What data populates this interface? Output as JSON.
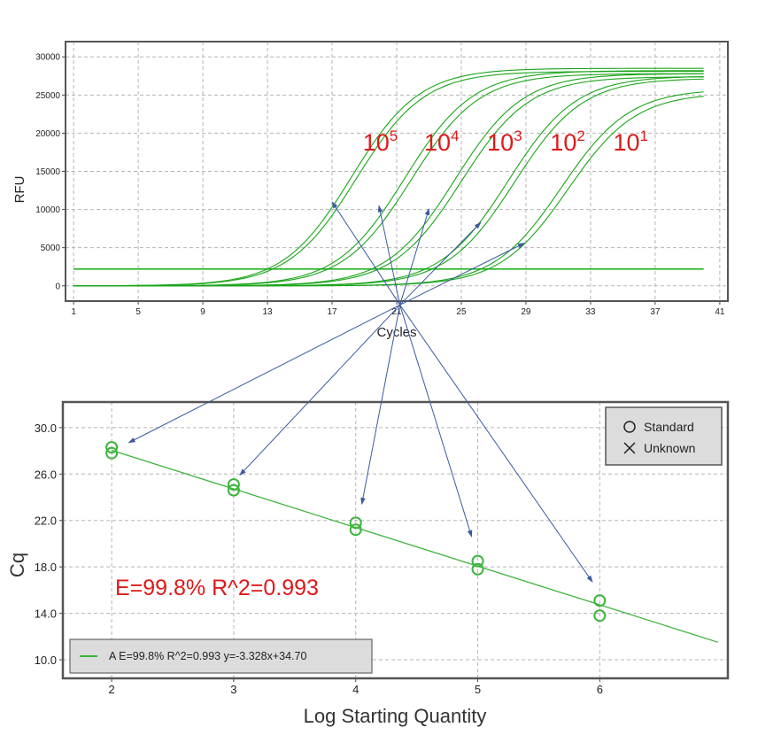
{
  "colors": {
    "curve": "#1aa51a",
    "threshold": "#22b422",
    "point": "#3cb43c",
    "fit": "#3cb43c",
    "annotation": "#e01818",
    "arrow": "#3a5a9e",
    "frame": "#555555",
    "grid": "#b5b5b5",
    "legend_bg": "#dcdcdc"
  },
  "chart_data": [
    {
      "type": "line",
      "title": "",
      "xlabel": "Cycles",
      "ylabel": "RFU",
      "xlim": [
        0.5,
        41.5
      ],
      "ylim": [
        -2000,
        32000
      ],
      "xticks": [
        1,
        5,
        9,
        13,
        17,
        21,
        25,
        29,
        33,
        37,
        41
      ],
      "yticks": [
        0,
        5000,
        10000,
        15000,
        20000,
        25000,
        30000
      ],
      "grid": true,
      "threshold": 2200,
      "curve_x_range": [
        1,
        40
      ],
      "series": [
        {
          "group": "10^5",
          "plateau": 28500,
          "midpoint": 18.2,
          "slope": 2.1
        },
        {
          "group": "10^5",
          "plateau": 28100,
          "midpoint": 18.5,
          "slope": 2.1
        },
        {
          "group": "10^4",
          "plateau": 28200,
          "midpoint": 21.5,
          "slope": 2.1
        },
        {
          "group": "10^4",
          "plateau": 27800,
          "midpoint": 21.9,
          "slope": 2.1
        },
        {
          "group": "10^3",
          "plateau": 27800,
          "midpoint": 24.6,
          "slope": 2.1
        },
        {
          "group": "10^3",
          "plateau": 27400,
          "midpoint": 25.0,
          "slope": 2.1
        },
        {
          "group": "10^2",
          "plateau": 27500,
          "midpoint": 27.9,
          "slope": 2.1
        },
        {
          "group": "10^2",
          "plateau": 27200,
          "midpoint": 28.3,
          "slope": 2.1
        },
        {
          "group": "10^1",
          "plateau": 25800,
          "midpoint": 31.2,
          "slope": 2.1
        },
        {
          "group": "10^1",
          "plateau": 25300,
          "midpoint": 31.6,
          "slope": 2.1
        }
      ],
      "annotations": [
        {
          "base": "10",
          "exp": "5",
          "x": 18.9,
          "y": 17700
        },
        {
          "base": "10",
          "exp": "4",
          "x": 22.7,
          "y": 17700
        },
        {
          "base": "10",
          "exp": "3",
          "x": 26.6,
          "y": 17700
        },
        {
          "base": "10",
          "exp": "2",
          "x": 30.5,
          "y": 17700
        },
        {
          "base": "10",
          "exp": "1",
          "x": 34.4,
          "y": 17700
        }
      ]
    },
    {
      "type": "scatter",
      "title": "",
      "xlabel": "Log Starting Quantity",
      "ylabel": "Cq",
      "xlim": [
        1.6,
        7.05
      ],
      "ylim": [
        8.4,
        32.2
      ],
      "xticks": [
        2,
        3,
        4,
        5,
        6
      ],
      "yticks": [
        10.0,
        14.0,
        18.0,
        22.0,
        26.0,
        30.0
      ],
      "ytick_labels": [
        "10.0",
        "14.0",
        "18.0",
        "22.0",
        "26.0",
        "30.0"
      ],
      "grid": true,
      "points": [
        {
          "x": 2,
          "y": 28.3
        },
        {
          "x": 2,
          "y": 27.8
        },
        {
          "x": 3,
          "y": 25.1
        },
        {
          "x": 3,
          "y": 24.6
        },
        {
          "x": 4,
          "y": 21.8
        },
        {
          "x": 4,
          "y": 21.2
        },
        {
          "x": 5,
          "y": 18.5
        },
        {
          "x": 5,
          "y": 17.8
        },
        {
          "x": 6,
          "y": 15.1
        },
        {
          "x": 6,
          "y": 13.8
        }
      ],
      "fit": {
        "slope": -3.328,
        "intercept": 34.7,
        "x_range": [
          2,
          6.97
        ]
      },
      "annotation": "E=99.8%  R^2=0.993",
      "legend": {
        "position": "top-right",
        "entries": [
          "Standard",
          "Unknown"
        ]
      },
      "fit_legend": {
        "position": "bottom-left",
        "text": "A E=99.8% R^2=0.993 y=-3.328x+34.70"
      }
    }
  ],
  "arrows": {
    "source": {
      "x": 21.2,
      "y": -2500
    },
    "to_top": [
      {
        "x": 17.0,
        "y": 11000
      },
      {
        "x": 19.9,
        "y": 10500
      },
      {
        "x": 23.0,
        "y": 10100
      },
      {
        "x": 26.2,
        "y": 8300
      },
      {
        "x": 28.9,
        "y": 5600
      }
    ],
    "to_bottom": [
      {
        "x": 2.14,
        "y": 28.7
      },
      {
        "x": 3.05,
        "y": 25.9
      },
      {
        "x": 4.05,
        "y": 23.4
      },
      {
        "x": 4.95,
        "y": 20.6
      },
      {
        "x": 5.94,
        "y": 16.7
      }
    ]
  }
}
